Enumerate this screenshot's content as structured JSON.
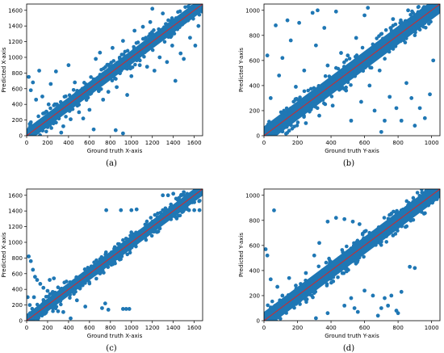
{
  "panels": [
    {
      "caption": "(a)",
      "chart_data": {
        "type": "scatter",
        "title": "",
        "xlabel": "Ground truth X-axis",
        "ylabel": "Predicted X-axis",
        "xlim": [
          0,
          1680
        ],
        "ylim": [
          0,
          1680
        ],
        "xticks": [
          0,
          200,
          400,
          600,
          800,
          1000,
          1200,
          1400,
          1600
        ],
        "yticks": [
          0,
          200,
          400,
          600,
          800,
          1000,
          1200,
          1400,
          1600
        ],
        "band_halfwidth": 90,
        "outlier_points": [
          [
            20,
            750
          ],
          [
            40,
            580
          ],
          [
            60,
            680
          ],
          [
            90,
            460
          ],
          [
            120,
            830
          ],
          [
            150,
            500
          ],
          [
            170,
            290
          ],
          [
            210,
            400
          ],
          [
            230,
            660
          ],
          [
            280,
            820
          ],
          [
            310,
            360
          ],
          [
            350,
            120
          ],
          [
            400,
            900
          ],
          [
            420,
            210
          ],
          [
            460,
            680
          ],
          [
            500,
            300
          ],
          [
            540,
            220
          ],
          [
            600,
            330
          ],
          [
            660,
            980
          ],
          [
            700,
            1060
          ],
          [
            730,
            460
          ],
          [
            780,
            560
          ],
          [
            820,
            1120
          ],
          [
            860,
            620
          ],
          [
            920,
            1210
          ],
          [
            960,
            520
          ],
          [
            1000,
            760
          ],
          [
            1030,
            1340
          ],
          [
            1080,
            900
          ],
          [
            1110,
            1390
          ],
          [
            1150,
            880
          ],
          [
            1180,
            1450
          ],
          [
            1220,
            830
          ],
          [
            1270,
            1000
          ],
          [
            1300,
            1560
          ],
          [
            1340,
            940
          ],
          [
            1390,
            1150
          ],
          [
            1420,
            700
          ],
          [
            1470,
            1050
          ],
          [
            1500,
            980
          ],
          [
            1560,
            1250
          ],
          [
            1610,
            1150
          ],
          [
            1640,
            1400
          ],
          [
            100,
            40
          ],
          [
            330,
            40
          ],
          [
            640,
            80
          ],
          [
            850,
            70
          ],
          [
            920,
            30
          ],
          [
            1200,
            1620
          ],
          [
            1550,
            1640
          ]
        ],
        "line": {
          "color": "#d62728",
          "from": [
            0,
            0
          ],
          "to": [
            1680,
            1680
          ]
        }
      }
    },
    {
      "caption": "(b)",
      "chart_data": {
        "type": "scatter",
        "title": "",
        "xlabel": "Ground truth Y-axis",
        "ylabel": "Predicted Y-axis",
        "xlim": [
          0,
          1050
        ],
        "ylim": [
          0,
          1050
        ],
        "xticks": [
          0,
          200,
          400,
          600,
          800,
          1000
        ],
        "yticks": [
          0,
          200,
          400,
          600,
          800,
          1000
        ],
        "band_halfwidth": 75,
        "outlier_points": [
          [
            20,
            640
          ],
          [
            40,
            300
          ],
          [
            70,
            880
          ],
          [
            90,
            480
          ],
          [
            110,
            620
          ],
          [
            130,
            180
          ],
          [
            160,
            760
          ],
          [
            190,
            390
          ],
          [
            210,
            900
          ],
          [
            240,
            520
          ],
          [
            260,
            300
          ],
          [
            290,
            980
          ],
          [
            310,
            720
          ],
          [
            330,
            160
          ],
          [
            360,
            860
          ],
          [
            380,
            560
          ],
          [
            410,
            240
          ],
          [
            430,
            990
          ],
          [
            460,
            660
          ],
          [
            490,
            360
          ],
          [
            520,
            120
          ],
          [
            550,
            780
          ],
          [
            580,
            270
          ],
          [
            600,
            960
          ],
          [
            630,
            400
          ],
          [
            660,
            200
          ],
          [
            690,
            520
          ],
          [
            720,
            120
          ],
          [
            750,
            310
          ],
          [
            770,
            930
          ],
          [
            790,
            220
          ],
          [
            820,
            120
          ],
          [
            850,
            420
          ],
          [
            880,
            300
          ],
          [
            900,
            80
          ],
          [
            930,
            220
          ],
          [
            960,
            140
          ],
          [
            990,
            330
          ],
          [
            1010,
            600
          ],
          [
            1030,
            990
          ],
          [
            60,
            60
          ],
          [
            150,
            40
          ],
          [
            250,
            100
          ],
          [
            700,
            30
          ],
          [
            980,
            1010
          ],
          [
            140,
            920
          ],
          [
            320,
            1000
          ],
          [
            620,
            1020
          ],
          [
            860,
            1000
          ],
          [
            500,
            640
          ]
        ],
        "line": {
          "color": "#d62728",
          "from": [
            0,
            0
          ],
          "to": [
            1050,
            1050
          ]
        }
      }
    },
    {
      "caption": "(c)",
      "chart_data": {
        "type": "scatter",
        "title": "",
        "xlabel": "Ground truth X-axis",
        "ylabel": "Predicted X-axis",
        "xlim": [
          0,
          1680
        ],
        "ylim": [
          0,
          1680
        ],
        "xticks": [
          0,
          200,
          400,
          600,
          800,
          1000,
          1200,
          1400,
          1600
        ],
        "yticks": [
          0,
          200,
          400,
          600,
          800,
          1000,
          1200,
          1400,
          1600
        ],
        "band_halfwidth": 85,
        "outlier_points": [
          [
            20,
            820
          ],
          [
            40,
            760
          ],
          [
            60,
            650
          ],
          [
            80,
            560
          ],
          [
            100,
            520
          ],
          [
            130,
            470
          ],
          [
            160,
            420
          ],
          [
            200,
            380
          ],
          [
            250,
            160
          ],
          [
            300,
            120
          ],
          [
            350,
            110
          ],
          [
            420,
            30
          ],
          [
            480,
            260
          ],
          [
            560,
            180
          ],
          [
            720,
            160
          ],
          [
            750,
            220
          ],
          [
            780,
            140
          ],
          [
            920,
            150
          ],
          [
            950,
            150
          ],
          [
            980,
            150
          ],
          [
            760,
            1410
          ],
          [
            900,
            1410
          ],
          [
            1000,
            1410
          ],
          [
            1050,
            1420
          ],
          [
            1300,
            1410
          ],
          [
            1350,
            1410
          ],
          [
            1400,
            1410
          ],
          [
            1450,
            1410
          ],
          [
            1500,
            1410
          ],
          [
            1550,
            1410
          ],
          [
            1600,
            1410
          ],
          [
            1650,
            1410
          ],
          [
            1300,
            1600
          ],
          [
            1350,
            1600
          ],
          [
            1400,
            1620
          ],
          [
            1500,
            1640
          ],
          [
            1600,
            1650
          ],
          [
            1650,
            1650
          ],
          [
            1580,
            1590
          ],
          [
            10,
            300
          ],
          [
            30,
            200
          ],
          [
            70,
            300
          ],
          [
            220,
            520
          ],
          [
            260,
            540
          ]
        ],
        "line": {
          "color": "#d62728",
          "from": [
            0,
            0
          ],
          "to": [
            1680,
            1680
          ]
        }
      }
    },
    {
      "caption": "(d)",
      "chart_data": {
        "type": "scatter",
        "title": "",
        "xlabel": "Ground truth Y-axis",
        "ylabel": "Predicted Y-axis",
        "xlim": [
          0,
          1050
        ],
        "ylim": [
          0,
          1050
        ],
        "xticks": [
          0,
          200,
          400,
          600,
          800,
          1000
        ],
        "yticks": [
          0,
          200,
          400,
          600,
          800,
          1000
        ],
        "band_halfwidth": 70,
        "outlier_points": [
          [
            10,
            570
          ],
          [
            20,
            520
          ],
          [
            40,
            330
          ],
          [
            60,
            880
          ],
          [
            80,
            270
          ],
          [
            110,
            200
          ],
          [
            150,
            340
          ],
          [
            190,
            280
          ],
          [
            250,
            380
          ],
          [
            300,
            520
          ],
          [
            330,
            620
          ],
          [
            380,
            790
          ],
          [
            430,
            820
          ],
          [
            480,
            810
          ],
          [
            530,
            790
          ],
          [
            570,
            770
          ],
          [
            600,
            710
          ],
          [
            640,
            690
          ],
          [
            700,
            630
          ],
          [
            740,
            700
          ],
          [
            770,
            680
          ],
          [
            800,
            820
          ],
          [
            820,
            880
          ],
          [
            860,
            920
          ],
          [
            900,
            960
          ],
          [
            960,
            990
          ],
          [
            1000,
            1030
          ],
          [
            1030,
            1040
          ],
          [
            480,
            120
          ],
          [
            520,
            180
          ],
          [
            540,
            100
          ],
          [
            560,
            70
          ],
          [
            600,
            240
          ],
          [
            650,
            200
          ],
          [
            680,
            40
          ],
          [
            700,
            100
          ],
          [
            720,
            180
          ],
          [
            740,
            120
          ],
          [
            760,
            200
          ],
          [
            790,
            80
          ],
          [
            800,
            60
          ],
          [
            820,
            230
          ],
          [
            870,
            430
          ],
          [
            900,
            420
          ],
          [
            310,
            20
          ],
          [
            380,
            60
          ]
        ],
        "line": {
          "color": "#d62728",
          "from": [
            0,
            0
          ],
          "to": [
            1050,
            1050
          ]
        }
      }
    }
  ],
  "colors": {
    "points": "#1f77b4",
    "line": "#d62728",
    "axes": "#000000"
  }
}
